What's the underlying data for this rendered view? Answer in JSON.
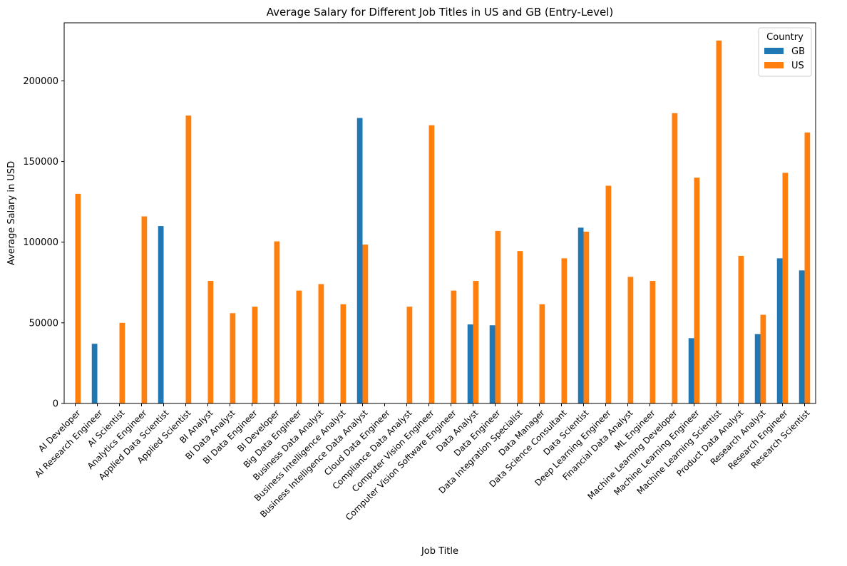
{
  "chart_data": {
    "type": "bar",
    "title": "Average Salary for Different Job Titles in US and GB (Entry-Level)",
    "xlabel": "Job Title",
    "ylabel": "Average Salary in USD",
    "ylim": [
      0,
      236000
    ],
    "yticks": [
      0,
      50000,
      100000,
      150000,
      200000
    ],
    "grid": false,
    "legend": {
      "title": "Country",
      "placement": "top-right"
    },
    "categories": [
      "AI Developer",
      "AI Research Engineer",
      "AI Scientist",
      "Analytics Engineer",
      "Applied Data Scientist",
      "Applied Scientist",
      "BI Analyst",
      "BI Data Analyst",
      "BI Data Engineer",
      "BI Developer",
      "Big Data Engineer",
      "Business Data Analyst",
      "Business Intelligence Analyst",
      "Business Intelligence Data Analyst",
      "Cloud Data Engineer",
      "Compliance Data Analyst",
      "Computer Vision Engineer",
      "Computer Vision Software Engineer",
      "Data Analyst",
      "Data Engineer",
      "Data Integration Specialist",
      "Data Manager",
      "Data Science Consultant",
      "Data Scientist",
      "Deep Learning Engineer",
      "Financial Data Analyst",
      "ML Engineer",
      "Machine Learning Developer",
      "Machine Learning Engineer",
      "Machine Learning Scientist",
      "Product Data Analyst",
      "Research Analyst",
      "Research Engineer",
      "Research Scientist"
    ],
    "series": [
      {
        "name": "GB",
        "color": "#1f77b4",
        "values": [
          0,
          37000,
          0,
          0,
          110000,
          0,
          0,
          0,
          0,
          0,
          0,
          0,
          0,
          177000,
          0,
          0,
          0,
          0,
          49000,
          48500,
          0,
          0,
          0,
          109000,
          0,
          0,
          0,
          0,
          40500,
          0,
          0,
          43000,
          90000,
          82500
        ]
      },
      {
        "name": "US",
        "color": "#ff7f0e",
        "values": [
          130000,
          0,
          50000,
          116000,
          0,
          178500,
          76000,
          56000,
          60000,
          100500,
          70000,
          74000,
          61500,
          98500,
          0,
          60000,
          172500,
          70000,
          76000,
          107000,
          94500,
          61500,
          90000,
          106500,
          135000,
          78500,
          76000,
          180000,
          140000,
          225000,
          91500,
          55000,
          143000,
          168000
        ]
      }
    ]
  }
}
